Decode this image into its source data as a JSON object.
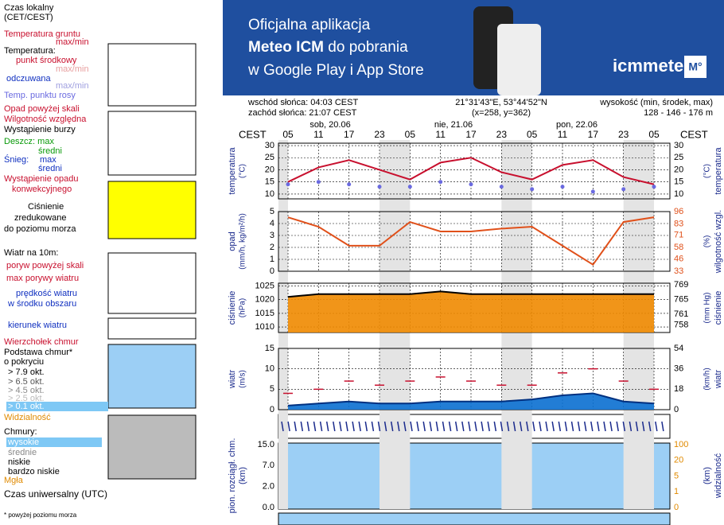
{
  "banner": {
    "line1": "Oficjalna aplikacja",
    "line2a": "Meteo ICM",
    "line2b": " do pobrania",
    "line3": "w Google Play i App Store",
    "logo": "icmmeteo",
    "badge": "M°"
  },
  "header": {
    "sunrise": "wschód słońca: 04:03 CEST",
    "sunset": "zachód słońca: 21:07 CEST",
    "coords": "21°31'43\"E, 53°44'52\"N",
    "grid": "(x=258,  y=362)",
    "elev_label": "wysokość (min, środek, max)",
    "elev": "128 - 146 - 176 m",
    "tz_left": "CEST",
    "tz_right": "CEST",
    "days": [
      "sob, 20.06",
      "nie, 21.06",
      "pon, 22.06"
    ]
  },
  "legend": {
    "local_time": "Czas lokalny",
    "local_tz": "(CET/CEST)",
    "ground_temp": "Temperatura gruntu",
    "ground_mm": "max/min",
    "temperature": "Temperatura:",
    "mid": "punkt środkowy",
    "maxmin": "max/min",
    "feels": "odczuwana",
    "feels_mm": "max/min",
    "dew": "Temp. punktu rosy",
    "precip_above": "Opad powyżej skali",
    "humidity": "Wilgotność względna",
    "storm": "Wystąpienie burzy",
    "rain": "Deszcz: max",
    "rain_mid": "średni",
    "snow": "Śnieg:",
    "snow_max": "max",
    "snow_mid": "średni",
    "precip_occ": "Wystąpienie opadu",
    "precip_conv": "konwekcyjnego",
    "pressure1": "Ciśnienie",
    "pressure2": "zredukowane",
    "pressure3": "do poziomu morza",
    "wind": "Wiatr na 10m:",
    "gust_above": "poryw powyżej skali",
    "gust_max": "max porywy wiatru",
    "wind_speed": "prędkość wiatru",
    "wind_area": "w środku obszaru",
    "wind_dir": "kierunek wiatru",
    "cloud_top": "Wierzchołek chmur",
    "cloud_base1": "Podstawa chmur*",
    "cloud_base2": "o pokryciu",
    "okt": [
      "> 7.9 okt.",
      "> 6.5 okt.",
      "> 4.5 okt.",
      "> 2.5 okt.",
      "> 0.1 okt."
    ],
    "visibility": "Widzialność",
    "clouds": "Chmury:",
    "high": "wysokie",
    "middle": "średnie",
    "low": "niskie",
    "very_low": "bardzo niskie",
    "fog": "Mgła",
    "utc": "Czas uniwersalny (UTC)",
    "footnote": "* powyżej poziomu morza"
  },
  "cloud_panel": {
    "ylabel": "pion. rozciągł. chm.",
    "yunit": "(km)",
    "y2label": "widzialność",
    "y2unit": "(km)",
    "ticks": [
      "15.0",
      "7.0",
      "2.0",
      "0.0"
    ],
    "y2ticks": [
      "100",
      "20",
      "5",
      "1",
      "0"
    ]
  },
  "chart_data": [
    {
      "type": "line",
      "ylabel": "temperatura",
      "yunit": "(°C)",
      "categories": [
        "05",
        "11",
        "17",
        "23",
        "05",
        "11",
        "17",
        "23",
        "05",
        "11",
        "17",
        "23",
        "05"
      ],
      "ylim": [
        8,
        31
      ],
      "yticks": [
        30,
        25,
        20,
        15,
        10
      ],
      "grid": true,
      "series": [
        {
          "name": "temperatura",
          "color": "#c8102e",
          "values": [
            15,
            21,
            24,
            20,
            16,
            23,
            25,
            19,
            16,
            22,
            24,
            17,
            14
          ]
        },
        {
          "name": "punkt rosy",
          "color": "#6a6ae0",
          "values": [
            14,
            15,
            14,
            13,
            13,
            15,
            14,
            13,
            12,
            13,
            11,
            12,
            13
          ]
        }
      ]
    },
    {
      "type": "line",
      "ylabel": "opad",
      "yunit": "(mm/h, kg/m²/h)",
      "y2label": "wilgotność wzgl.",
      "y2unit": "(%)",
      "ylim": [
        0,
        5
      ],
      "yticks": [
        5,
        4,
        3,
        2,
        1,
        0
      ],
      "y2lim": [
        33,
        96
      ],
      "y2ticks": [
        96,
        83,
        71,
        58,
        46,
        33
      ],
      "grid": true,
      "series": [
        {
          "name": "wilgotność",
          "color": "#e0501a",
          "axis": "y2",
          "values": [
            90,
            80,
            60,
            60,
            85,
            75,
            75,
            78,
            80,
            60,
            40,
            85,
            90
          ]
        }
      ]
    },
    {
      "type": "area",
      "ylabel": "ciśnienie",
      "yunit": "(hPa)",
      "y2label": "ciśnienie",
      "y2unit": "(mm Hg)",
      "ylim": [
        1008,
        1026
      ],
      "yticks": [
        1025,
        1020,
        1015,
        1010
      ],
      "y2lim": [
        756,
        769.5
      ],
      "y2ticks": [
        769,
        765,
        761,
        758
      ],
      "grid": true,
      "series": [
        {
          "name": "ciśnienie",
          "color": "#f08a00",
          "values": [
            1021,
            1022,
            1022,
            1022,
            1022,
            1023,
            1022,
            1022,
            1022,
            1022,
            1022,
            1022,
            1022
          ]
        }
      ]
    },
    {
      "type": "area",
      "ylabel": "wiatr",
      "yunit": "(m/s)",
      "y2label": "wiatr",
      "y2unit": "(km/h)",
      "ylim": [
        0,
        15
      ],
      "yticks": [
        15,
        10,
        5,
        0
      ],
      "y2lim": [
        0,
        54
      ],
      "y2ticks": [
        54,
        36,
        18,
        0
      ],
      "grid": true,
      "series": [
        {
          "name": "prędkość",
          "color": "#0a6fd0",
          "values": [
            1,
            1.5,
            2,
            1.5,
            1.5,
            2,
            2,
            2,
            2.5,
            3.5,
            4,
            2,
            1.5
          ]
        },
        {
          "name": "porywy",
          "color": "#c8102e",
          "values": [
            4,
            5,
            7,
            6,
            7,
            8,
            7,
            6,
            6,
            9,
            10,
            7,
            5
          ]
        }
      ]
    }
  ]
}
